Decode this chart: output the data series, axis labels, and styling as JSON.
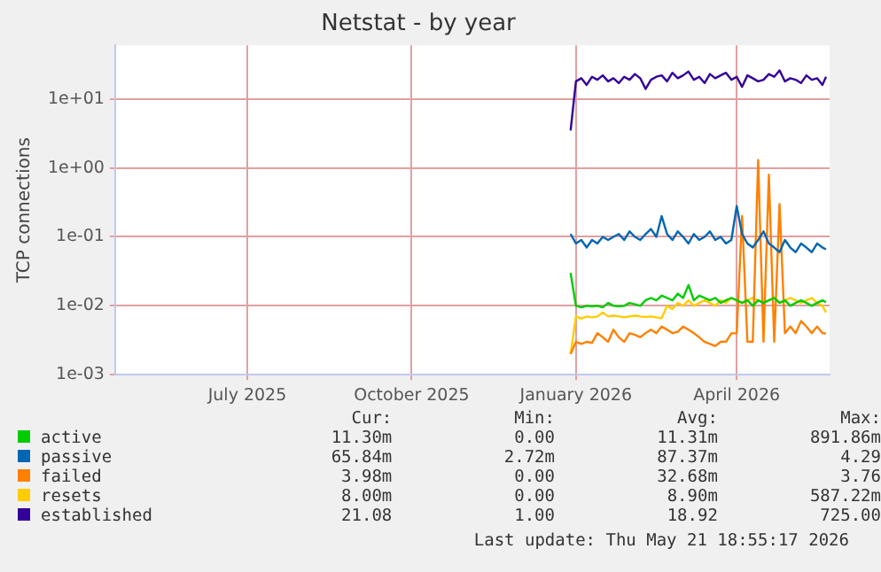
{
  "chart_data": {
    "type": "line",
    "title": "Netstat - by year",
    "ylabel": "TCP connections",
    "log": "y",
    "grid": true,
    "legend": "bottom",
    "marker": "none",
    "line_style": "solid",
    "xlim": [
      "2025-04-18",
      "2026-05-23"
    ],
    "xticks": [
      {
        "value": "2025-07-01",
        "label": "July 2025"
      },
      {
        "value": "2025-10-01",
        "label": "October 2025"
      },
      {
        "value": "2026-01-01",
        "label": "January 2026"
      },
      {
        "value": "2026-04-01",
        "label": "April 2026"
      }
    ],
    "ylim": [
      0.001,
      60
    ],
    "yticks": [
      {
        "value": 0.001,
        "label": "1e-03"
      },
      {
        "value": 0.01,
        "label": "1e-02"
      },
      {
        "value": 0.1,
        "label": "1e-01"
      },
      {
        "value": 1,
        "label": "1e+00"
      },
      {
        "value": 10,
        "label": "1e+01"
      }
    ],
    "x": [
      "2025-12-29",
      "2026-01-01",
      "2026-01-04",
      "2026-01-07",
      "2026-01-10",
      "2026-01-13",
      "2026-01-16",
      "2026-01-19",
      "2026-01-22",
      "2026-01-25",
      "2026-01-28",
      "2026-01-31",
      "2026-02-03",
      "2026-02-06",
      "2026-02-09",
      "2026-02-12",
      "2026-02-15",
      "2026-02-18",
      "2026-02-21",
      "2026-02-24",
      "2026-02-27",
      "2026-03-02",
      "2026-03-05",
      "2026-03-08",
      "2026-03-11",
      "2026-03-14",
      "2026-03-17",
      "2026-03-20",
      "2026-03-23",
      "2026-03-26",
      "2026-03-29",
      "2026-04-01",
      "2026-04-04",
      "2026-04-07",
      "2026-04-10",
      "2026-04-13",
      "2026-04-16",
      "2026-04-19",
      "2026-04-22",
      "2026-04-25",
      "2026-04-28",
      "2026-05-01",
      "2026-05-04",
      "2026-05-07",
      "2026-05-10",
      "2026-05-13",
      "2026-05-16",
      "2026-05-19",
      "2026-05-21"
    ],
    "series": [
      {
        "name": "active",
        "color": "#00cc00",
        "values": [
          0.03,
          0.01,
          0.0095,
          0.01,
          0.0098,
          0.01,
          0.0095,
          0.011,
          0.01,
          0.0098,
          0.01,
          0.011,
          0.0105,
          0.01,
          0.012,
          0.013,
          0.012,
          0.014,
          0.013,
          0.012,
          0.015,
          0.013,
          0.02,
          0.012,
          0.014,
          0.013,
          0.012,
          0.013,
          0.011,
          0.012,
          0.013,
          0.012,
          0.011,
          0.012,
          0.01,
          0.012,
          0.011,
          0.012,
          0.013,
          0.011,
          0.012,
          0.01,
          0.011,
          0.012,
          0.011,
          0.01,
          0.011,
          0.012,
          0.0113
        ]
      },
      {
        "name": "passive",
        "color": "#0066b3",
        "values": [
          0.11,
          0.08,
          0.09,
          0.07,
          0.09,
          0.08,
          0.1,
          0.09,
          0.1,
          0.11,
          0.09,
          0.12,
          0.1,
          0.09,
          0.11,
          0.13,
          0.1,
          0.2,
          0.11,
          0.09,
          0.12,
          0.1,
          0.08,
          0.11,
          0.09,
          0.1,
          0.12,
          0.09,
          0.1,
          0.08,
          0.09,
          0.28,
          0.11,
          0.08,
          0.07,
          0.09,
          0.12,
          0.08,
          0.07,
          0.06,
          0.09,
          0.07,
          0.06,
          0.08,
          0.07,
          0.06,
          0.08,
          0.07,
          0.066
        ]
      },
      {
        "name": "failed",
        "color": "#ff8000",
        "values": [
          0.002,
          0.003,
          0.0028,
          0.003,
          0.0029,
          0.004,
          0.0035,
          0.003,
          0.0045,
          0.0035,
          0.003,
          0.004,
          0.0038,
          0.0035,
          0.004,
          0.0045,
          0.004,
          0.005,
          0.0045,
          0.004,
          0.0042,
          0.005,
          0.0045,
          0.004,
          0.0035,
          0.003,
          0.0028,
          0.0026,
          0.003,
          0.003,
          0.004,
          0.004,
          0.2,
          0.003,
          0.003,
          1.3,
          0.003,
          0.8,
          0.003,
          0.3,
          0.004,
          0.005,
          0.004,
          0.006,
          0.005,
          0.004,
          0.005,
          0.004,
          0.00398
        ]
      },
      {
        "name": "resets",
        "color": "#ffcc00",
        "values": [
          0.002,
          0.007,
          0.0065,
          0.007,
          0.0068,
          0.007,
          0.008,
          0.007,
          0.0072,
          0.007,
          0.0068,
          0.007,
          0.0072,
          0.007,
          0.0069,
          0.007,
          0.0068,
          0.0066,
          0.01,
          0.009,
          0.011,
          0.01,
          0.012,
          0.01,
          0.011,
          0.012,
          0.011,
          0.01,
          0.012,
          0.011,
          0.013,
          0.012,
          0.011,
          0.012,
          0.013,
          0.012,
          0.011,
          0.012,
          0.013,
          0.011,
          0.012,
          0.013,
          0.012,
          0.011,
          0.012,
          0.013,
          0.011,
          0.01,
          0.008
        ]
      },
      {
        "name": "established",
        "color": "#330099",
        "values": [
          3.5,
          18,
          20,
          16,
          21,
          19,
          22,
          18,
          20,
          17,
          21,
          19,
          23,
          20,
          14,
          19,
          21,
          22,
          18,
          24,
          20,
          22,
          25,
          19,
          21,
          17,
          23,
          20,
          22,
          24,
          19,
          21,
          15,
          22,
          20,
          18,
          19,
          23,
          21,
          26,
          18,
          20,
          19,
          17,
          22,
          19,
          20,
          16,
          21
        ]
      }
    ],
    "annotations": [
      "Cur:",
      "Min:",
      "Avg:",
      "Max:",
      "11.30m",
      "0.00",
      "11.31m",
      "891.86m",
      "65.84m",
      "2.72m",
      "87.37m",
      "4.29",
      "3.98m",
      "0.00",
      "32.68m",
      "3.76",
      "8.00m",
      "0.00",
      "8.90m",
      "587.22m",
      "21.08",
      "1.00",
      "18.92",
      "725.00",
      "Last update: Thu May 21 18:55:17 2026"
    ]
  }
}
